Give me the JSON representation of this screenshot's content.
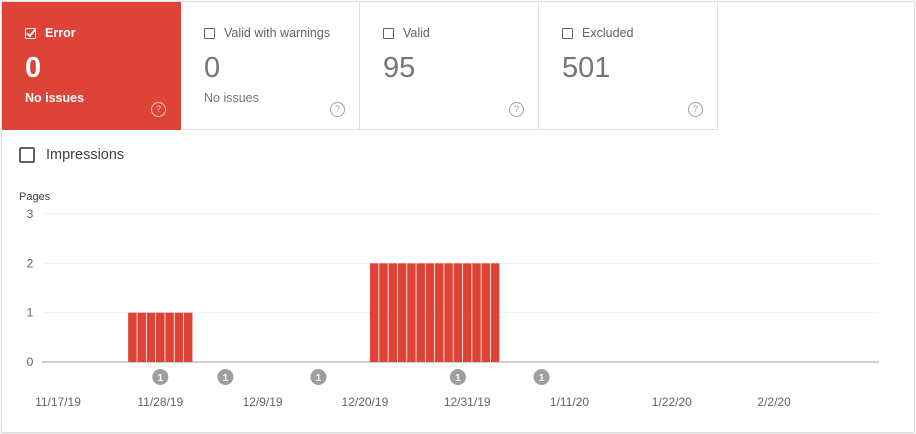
{
  "cards": [
    {
      "label": "Error",
      "count": "0",
      "sub": "No issues",
      "active": true
    },
    {
      "label": "Valid with warnings",
      "count": "0",
      "sub": "No issues",
      "active": false
    },
    {
      "label": "Valid",
      "count": "95",
      "sub": "",
      "active": false
    },
    {
      "label": "Excluded",
      "count": "501",
      "sub": "",
      "active": false
    }
  ],
  "impressions_label": "Impressions",
  "colors": {
    "error": "#dd4437",
    "grid": "#eeeeee",
    "marker": "#9e9e9e"
  },
  "chart_data": {
    "type": "bar",
    "ylabel": "Pages",
    "ylim": [
      0,
      3
    ],
    "yticks": [
      "0",
      "1",
      "2",
      "3"
    ],
    "xticks": [
      "11/17/19",
      "11/28/19",
      "12/9/19",
      "12/20/19",
      "12/31/19",
      "1/11/20",
      "1/22/20",
      "2/2/20"
    ],
    "series": [
      {
        "points": [
          {
            "x": "11/25/19",
            "y": 1
          },
          {
            "x": "11/26/19",
            "y": 1
          },
          {
            "x": "11/27/19",
            "y": 1
          },
          {
            "x": "11/28/19",
            "y": 1
          },
          {
            "x": "11/29/19",
            "y": 1
          },
          {
            "x": "11/30/19",
            "y": 1
          },
          {
            "x": "12/1/19",
            "y": 1
          },
          {
            "x": "12/21/19",
            "y": 2
          },
          {
            "x": "12/22/19",
            "y": 2
          },
          {
            "x": "12/23/19",
            "y": 2
          },
          {
            "x": "12/24/19",
            "y": 2
          },
          {
            "x": "12/25/19",
            "y": 2
          },
          {
            "x": "12/26/19",
            "y": 2
          },
          {
            "x": "12/27/19",
            "y": 2
          },
          {
            "x": "12/28/19",
            "y": 2
          },
          {
            "x": "12/29/19",
            "y": 2
          },
          {
            "x": "12/30/19",
            "y": 2
          },
          {
            "x": "12/31/19",
            "y": 2
          },
          {
            "x": "1/1/20",
            "y": 2
          },
          {
            "x": "1/2/20",
            "y": 2
          },
          {
            "x": "1/3/20",
            "y": 2
          }
        ]
      }
    ],
    "annotations": [
      {
        "x": "11/28/19",
        "label": "1"
      },
      {
        "x": "12/5/19",
        "label": "1"
      },
      {
        "x": "12/15/19",
        "label": "1"
      },
      {
        "x": "12/30/19",
        "label": "1"
      },
      {
        "x": "1/8/20",
        "label": "1"
      }
    ]
  }
}
